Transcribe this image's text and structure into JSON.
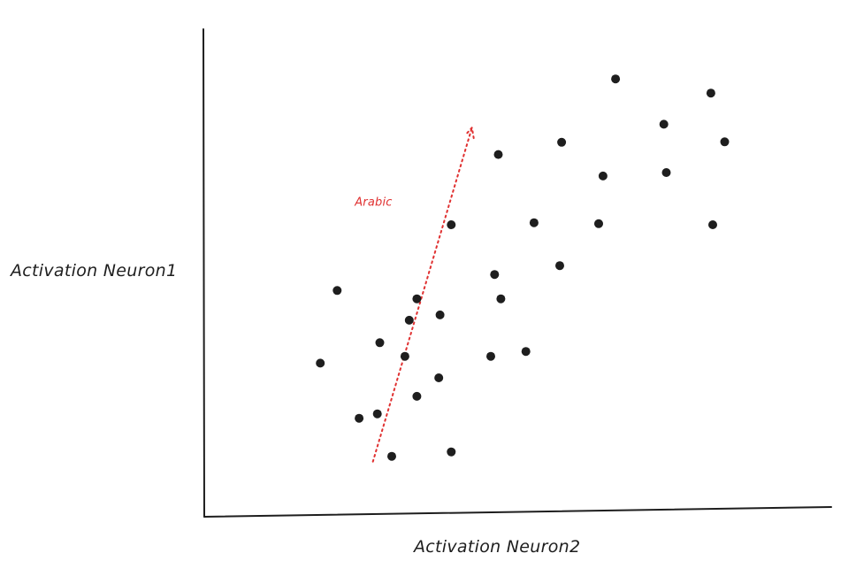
{
  "chart_data": {
    "type": "scatter",
    "xlabel": "Activation Neuron2",
    "ylabel": "Activation Neuron1",
    "xlim": [
      0,
      100
    ],
    "ylim": [
      0,
      100
    ],
    "grid": false,
    "points": [
      {
        "x": 18.5,
        "y": 31.5
      },
      {
        "x": 21.2,
        "y": 46.4
      },
      {
        "x": 24.7,
        "y": 20.2
      },
      {
        "x": 27.6,
        "y": 21.1
      },
      {
        "x": 28.0,
        "y": 35.7
      },
      {
        "x": 29.9,
        "y": 12.4
      },
      {
        "x": 32.0,
        "y": 32.9
      },
      {
        "x": 32.7,
        "y": 40.3
      },
      {
        "x": 33.9,
        "y": 24.7
      },
      {
        "x": 33.9,
        "y": 44.7
      },
      {
        "x": 37.4,
        "y": 28.5
      },
      {
        "x": 37.6,
        "y": 41.4
      },
      {
        "x": 39.4,
        "y": 13.3
      },
      {
        "x": 39.4,
        "y": 59.9
      },
      {
        "x": 45.7,
        "y": 32.9
      },
      {
        "x": 46.3,
        "y": 49.7
      },
      {
        "x": 46.9,
        "y": 74.3
      },
      {
        "x": 47.3,
        "y": 44.7
      },
      {
        "x": 51.3,
        "y": 33.9
      },
      {
        "x": 52.6,
        "y": 60.3
      },
      {
        "x": 56.7,
        "y": 51.5
      },
      {
        "x": 57.0,
        "y": 76.8
      },
      {
        "x": 62.9,
        "y": 60.1
      },
      {
        "x": 63.6,
        "y": 69.9
      },
      {
        "x": 65.6,
        "y": 89.8
      },
      {
        "x": 73.3,
        "y": 80.5
      },
      {
        "x": 73.7,
        "y": 70.6
      },
      {
        "x": 80.8,
        "y": 86.9
      },
      {
        "x": 81.1,
        "y": 59.9
      },
      {
        "x": 83.0,
        "y": 76.9
      }
    ],
    "annotations": [
      {
        "text": "Arabic",
        "from": [
          26.9,
          11.3
        ],
        "to": [
          42.7,
          79.8
        ],
        "color": "#e03131"
      }
    ]
  }
}
